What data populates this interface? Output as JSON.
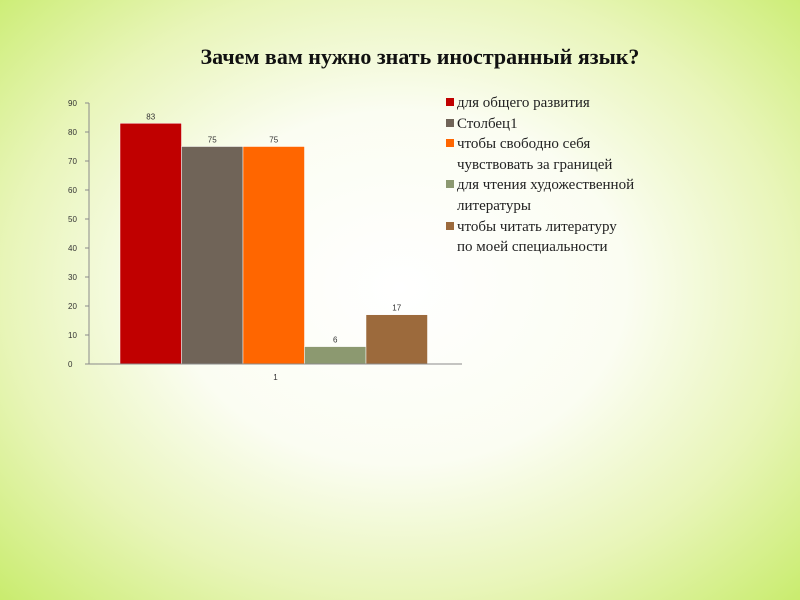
{
  "slide": {
    "title": "Зачем вам нужно знать иностранный язык?"
  },
  "chart_data": {
    "type": "bar",
    "categories": [
      "1"
    ],
    "series": [
      {
        "name": "для общего развития",
        "values": [
          83
        ],
        "color": "#c00000"
      },
      {
        "name": "Столбец1",
        "values": [
          75
        ],
        "color": "#706458"
      },
      {
        "name": "чтобы свободно себя чувствовать за границей",
        "values": [
          75
        ],
        "color": "#ff6600"
      },
      {
        "name": "для чтения художественной литературы",
        "values": [
          6
        ],
        "color": "#8c9970"
      },
      {
        "name": "чтобы читать литературу по моей специальности",
        "values": [
          17
        ],
        "color": "#9c6a3c"
      }
    ],
    "ylim": [
      0,
      90
    ],
    "yticks": [
      0,
      10,
      20,
      30,
      40,
      50,
      60,
      70,
      80,
      90
    ],
    "title": "",
    "xlabel": "",
    "ylabel": "",
    "legend": "right",
    "grid": false
  }
}
